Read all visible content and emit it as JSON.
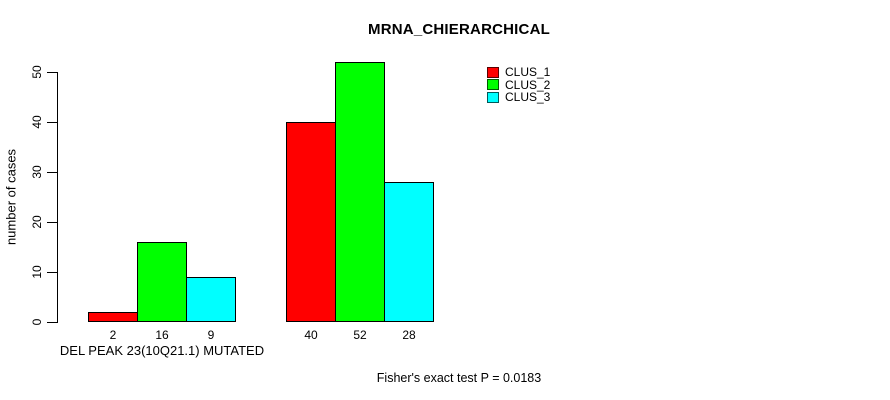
{
  "chart_data": {
    "type": "bar",
    "title": "MRNA_CHIERARCHICAL",
    "xlabel": "",
    "ylabel": "number of cases",
    "ylim": [
      0,
      50
    ],
    "yticks": [
      0,
      10,
      20,
      30,
      40,
      50
    ],
    "grid": false,
    "legend_position": "top-right",
    "bar_borders": "#000000",
    "categories": [
      "DEL PEAK 23(10Q21.1) MUTATED",
      ""
    ],
    "series": [
      {
        "name": "CLUS_1",
        "color": "#ff0000",
        "values": [
          2,
          40
        ]
      },
      {
        "name": "CLUS_2",
        "color": "#00ff00",
        "values": [
          16,
          52
        ]
      },
      {
        "name": "CLUS_3",
        "color": "#00ffff",
        "values": [
          9,
          28
        ]
      }
    ],
    "bar_value_labels": [
      [
        2,
        16,
        9
      ],
      [
        40,
        52,
        28
      ]
    ],
    "annotation": "Fisher's exact test P = 0.0183"
  }
}
